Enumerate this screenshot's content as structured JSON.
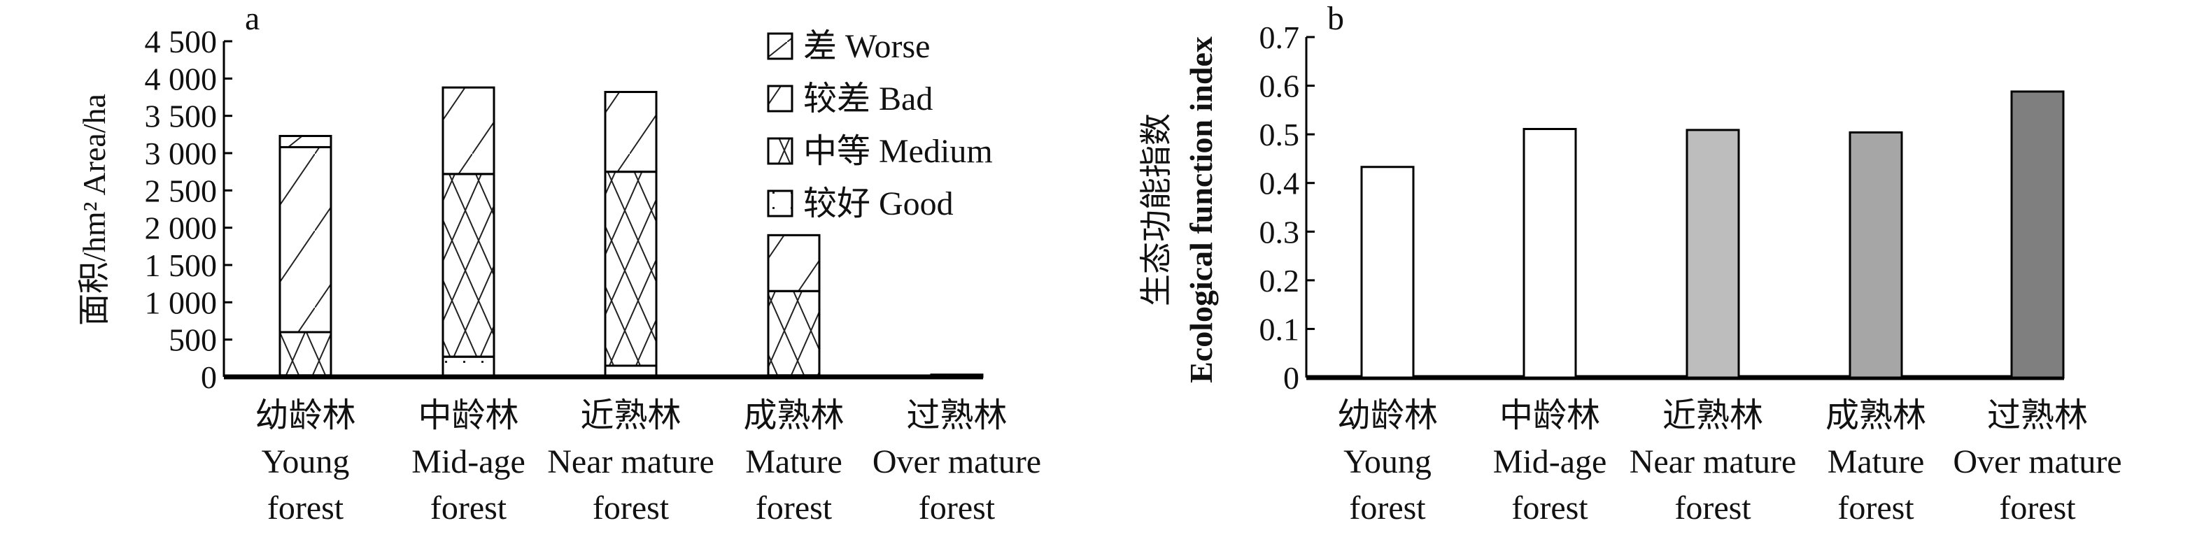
{
  "chart_data": [
    {
      "type": "bar",
      "stacked": true,
      "panel_label": "a",
      "ylabel": "面积/hm² Area/ha",
      "ylim": [
        0,
        4500
      ],
      "yticks": [
        "0",
        "500",
        "1 000",
        "1 500",
        "2 000",
        "2 500",
        "3 000",
        "3 500",
        "4 000",
        "4 500"
      ],
      "categories": [
        {
          "zh": "幼龄林",
          "en1": "Young",
          "en2": "forest"
        },
        {
          "zh": "中龄林",
          "en1": "Mid-age",
          "en2": "forest"
        },
        {
          "zh": "近熟林",
          "en1": "Near mature",
          "en2": "forest"
        },
        {
          "zh": "成熟林",
          "en1": "Mature",
          "en2": "forest"
        },
        {
          "zh": "过熟林",
          "en1": "Over mature",
          "en2": "forest"
        }
      ],
      "legend_placement": "top-right",
      "legend": [
        "差 Worse",
        "较差 Bad",
        "中等 Medium",
        "较好 Good"
      ],
      "series": [
        {
          "name": "较好 Good",
          "pattern": "dots",
          "values": [
            20,
            270,
            150,
            20,
            0
          ]
        },
        {
          "name": "中等 Medium",
          "pattern": "crosshatch",
          "values": [
            580,
            2450,
            2600,
            1130,
            0
          ]
        },
        {
          "name": "较差 Bad",
          "pattern": "diagonal",
          "values": [
            2480,
            1160,
            1070,
            750,
            0
          ]
        },
        {
          "name": "差 Worse",
          "pattern": "sparse-diagonal",
          "values": [
            150,
            0,
            0,
            0,
            30
          ]
        }
      ]
    },
    {
      "type": "bar",
      "panel_label": "b",
      "ylabel_zh": "生态功能指数",
      "ylabel_en": "Ecological function index",
      "ylim": [
        0,
        0.7
      ],
      "yticks": [
        "0",
        "0.1",
        "0.2",
        "0.3",
        "0.4",
        "0.5",
        "0.6",
        "0.7"
      ],
      "categories": [
        {
          "zh": "幼龄林",
          "en1": "Young",
          "en2": "forest"
        },
        {
          "zh": "中龄林",
          "en1": "Mid-age",
          "en2": "forest"
        },
        {
          "zh": "近熟林",
          "en1": "Near mature",
          "en2": "forest"
        },
        {
          "zh": "成熟林",
          "en1": "Mature",
          "en2": "forest"
        },
        {
          "zh": "过熟林",
          "en1": "Over mature",
          "en2": "forest"
        }
      ],
      "values": [
        0.433,
        0.511,
        0.509,
        0.504,
        0.588
      ],
      "colors": [
        "#ffffff",
        "#ffffff",
        "#bdbdbd",
        "#a6a6a6",
        "#7f7f7f"
      ]
    }
  ]
}
